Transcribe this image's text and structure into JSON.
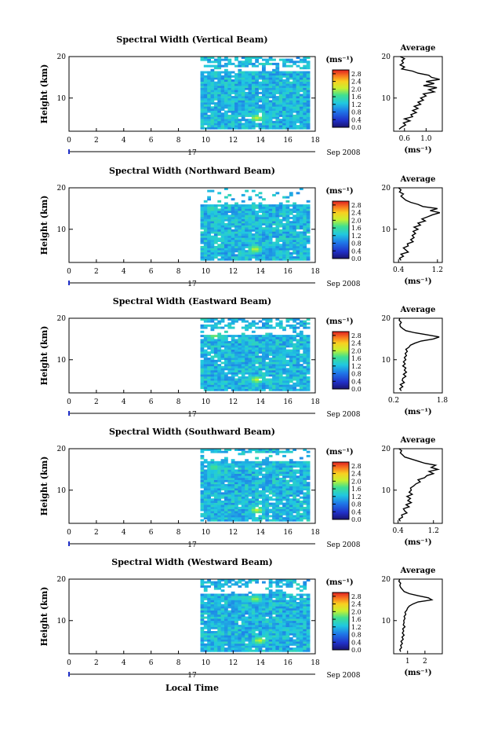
{
  "figure": {
    "xlabel": "Local Time",
    "date_label": "Sep 2008",
    "day_label": "17",
    "cbar_unit": "(ms⁻¹)",
    "avg_title": "Average",
    "avg_xlabel": "(ms⁻¹)"
  },
  "chart_data": [
    {
      "type": "heatmap",
      "title": "Spectral Width (Vertical Beam)",
      "ylabel": "Height (km)",
      "xlim": [
        0,
        18
      ],
      "ylim": [
        2,
        20
      ],
      "x_ticks": [
        "0",
        "2",
        "4",
        "6",
        "8",
        "10",
        "12",
        "14",
        "16",
        "18"
      ],
      "y_ticks": [
        "10",
        "20"
      ],
      "data_start_hour": 9.6,
      "data_end_hour": 17.6,
      "colorbar": {
        "ticks": [
          "0.0",
          "0.4",
          "0.8",
          "1.2",
          "1.6",
          "2.0",
          "2.4",
          "2.8"
        ],
        "range": [
          0,
          3.0
        ]
      },
      "features": [
        {
          "x": 13.6,
          "y": 5.0,
          "value": 2.8
        },
        {
          "x": 15.5,
          "y": 8.5,
          "value": 1.4
        },
        {
          "x": 10.5,
          "y": 15.5,
          "value": 1.6
        },
        {
          "x": 11.0,
          "y": 19.0,
          "value": 1.0
        }
      ],
      "gaps_km": [
        [
          16.2,
          17.0
        ]
      ],
      "avg_profile": {
        "xlim": [
          0.4,
          1.3
        ],
        "x_ticks": [
          "0.6",
          "1.0"
        ],
        "heights": [
          2.5,
          3,
          3.5,
          4,
          4.5,
          5,
          5.5,
          6,
          6.5,
          7,
          7.5,
          8,
          8.5,
          9,
          9.5,
          10,
          10.5,
          11,
          11.5,
          12,
          12.5,
          13,
          13.5,
          14,
          14.5,
          15,
          15.5,
          16,
          16.5,
          17,
          17.5,
          18,
          18.5,
          19,
          19.5,
          20
        ],
        "values": [
          0.5,
          0.55,
          0.62,
          0.58,
          0.7,
          0.6,
          0.75,
          0.72,
          0.82,
          0.75,
          0.85,
          0.78,
          0.9,
          0.85,
          0.95,
          0.9,
          1.0,
          0.95,
          1.15,
          1.05,
          1.2,
          0.95,
          1.15,
          1.0,
          1.25,
          1.1,
          1.05,
          0.85,
          0.75,
          0.55,
          0.6,
          0.52,
          0.58,
          0.55,
          0.6,
          0.52
        ]
      }
    },
    {
      "type": "heatmap",
      "title": "Spectral Width (Northward Beam)",
      "ylabel": "Height (km)",
      "xlim": [
        0,
        18
      ],
      "ylim": [
        2,
        20
      ],
      "x_ticks": [
        "0",
        "2",
        "4",
        "6",
        "8",
        "10",
        "12",
        "14",
        "16",
        "18"
      ],
      "y_ticks": [
        "10",
        "20"
      ],
      "data_start_hour": 9.6,
      "data_end_hour": 17.6,
      "colorbar": {
        "ticks": [
          "0.0",
          "0.4",
          "0.8",
          "1.2",
          "1.6",
          "2.0",
          "2.4",
          "2.8"
        ],
        "range": [
          0,
          3.0
        ]
      },
      "features": [
        {
          "x": 13.5,
          "y": 5.0,
          "value": 2.8
        },
        {
          "x": 10.3,
          "y": 14.8,
          "value": 2.0
        },
        {
          "x": 12.0,
          "y": 8.0,
          "value": 1.0
        }
      ],
      "gaps_km": [
        [
          16.0,
          19.5
        ]
      ],
      "avg_profile": {
        "xlim": [
          0.3,
          1.3
        ],
        "x_ticks": [
          "0.4",
          "1.2"
        ],
        "heights": [
          2.5,
          3,
          3.5,
          4,
          4.5,
          5,
          5.5,
          6,
          6.5,
          7,
          7.5,
          8,
          8.5,
          9,
          9.5,
          10,
          10.5,
          11,
          11.5,
          12,
          12.5,
          13,
          13.5,
          14,
          14.5,
          15,
          15.5,
          16,
          16.5,
          17,
          17.5,
          18,
          18.5,
          19,
          19.5,
          20
        ],
        "values": [
          0.45,
          0.42,
          0.5,
          0.45,
          0.6,
          0.55,
          0.5,
          0.6,
          0.58,
          0.7,
          0.65,
          0.72,
          0.68,
          0.75,
          0.7,
          0.8,
          0.72,
          0.85,
          0.8,
          0.95,
          0.88,
          1.0,
          1.1,
          1.25,
          1.05,
          1.2,
          0.9,
          0.8,
          0.65,
          0.55,
          0.5,
          0.45,
          0.5,
          0.42,
          0.45,
          0.4
        ]
      }
    },
    {
      "type": "heatmap",
      "title": "Spectral Width (Eastward Beam)",
      "ylabel": "Height (km)",
      "xlim": [
        0,
        18
      ],
      "ylim": [
        2,
        20
      ],
      "x_ticks": [
        "0",
        "2",
        "4",
        "6",
        "8",
        "10",
        "12",
        "14",
        "16",
        "18"
      ],
      "y_ticks": [
        "10",
        "20"
      ],
      "data_start_hour": 9.6,
      "data_end_hour": 17.6,
      "colorbar": {
        "ticks": [
          "0.0",
          "0.4",
          "0.8",
          "1.2",
          "1.6",
          "2.0",
          "2.4",
          "2.8"
        ],
        "range": [
          0,
          3.0
        ]
      },
      "features": [
        {
          "x": 13.6,
          "y": 5.0,
          "value": 2.8
        },
        {
          "x": 10.5,
          "y": 15.5,
          "value": 2.4
        },
        {
          "x": 16.0,
          "y": 12.0,
          "value": 1.6
        }
      ],
      "gaps_km": [
        [
          16.0,
          17.0
        ]
      ],
      "avg_profile": {
        "xlim": [
          0.2,
          1.8
        ],
        "x_ticks": [
          "0.2",
          "1.8"
        ],
        "heights": [
          2.5,
          3,
          3.5,
          4,
          4.5,
          5,
          5.5,
          6,
          6.5,
          7,
          7.5,
          8,
          8.5,
          9,
          9.5,
          10,
          10.5,
          11,
          11.5,
          12,
          12.5,
          13,
          13.5,
          14,
          14.5,
          15,
          15.5,
          16,
          16.5,
          17,
          17.5,
          18,
          18.5,
          19,
          19.5,
          20
        ],
        "values": [
          0.45,
          0.4,
          0.5,
          0.42,
          0.55,
          0.48,
          0.5,
          0.6,
          0.52,
          0.62,
          0.55,
          0.6,
          0.5,
          0.58,
          0.52,
          0.6,
          0.55,
          0.62,
          0.58,
          0.65,
          0.6,
          0.7,
          0.75,
          0.9,
          1.1,
          1.5,
          1.7,
          1.3,
          0.9,
          0.6,
          0.5,
          0.42,
          0.4,
          0.45,
          0.38,
          0.4
        ]
      }
    },
    {
      "type": "heatmap",
      "title": "Spectral Width (Southward Beam)",
      "ylabel": "Height (km)",
      "xlim": [
        0,
        18
      ],
      "ylim": [
        2,
        20
      ],
      "x_ticks": [
        "0",
        "2",
        "4",
        "6",
        "8",
        "10",
        "12",
        "14",
        "16",
        "18"
      ],
      "y_ticks": [
        "10",
        "20"
      ],
      "data_start_hour": 9.6,
      "data_end_hour": 17.6,
      "colorbar": {
        "ticks": [
          "0.0",
          "0.4",
          "0.8",
          "1.2",
          "1.6",
          "2.0",
          "2.4",
          "2.8"
        ],
        "range": [
          0,
          3.0
        ]
      },
      "features": [
        {
          "x": 13.6,
          "y": 5.0,
          "value": 2.8
        },
        {
          "x": 10.5,
          "y": 15.3,
          "value": 2.2
        },
        {
          "x": 14.5,
          "y": 15.0,
          "value": 1.8
        }
      ],
      "gaps_km": [
        [
          17.0,
          18.5
        ]
      ],
      "avg_profile": {
        "xlim": [
          0.3,
          1.4
        ],
        "x_ticks": [
          "0.4",
          "1.2"
        ],
        "heights": [
          2.5,
          3,
          3.5,
          4,
          4.5,
          5,
          5.5,
          6,
          6.5,
          7,
          7.5,
          8,
          8.5,
          9,
          9.5,
          10,
          10.5,
          11,
          11.5,
          12,
          12.5,
          13,
          13.5,
          14,
          14.5,
          15,
          15.5,
          16,
          16.5,
          17,
          17.5,
          18,
          18.5,
          19,
          19.5,
          20
        ],
        "values": [
          0.45,
          0.42,
          0.5,
          0.48,
          0.6,
          0.55,
          0.52,
          0.65,
          0.58,
          0.7,
          0.62,
          0.68,
          0.6,
          0.72,
          0.65,
          0.7,
          0.68,
          0.75,
          0.8,
          0.9,
          0.85,
          1.0,
          1.05,
          1.2,
          1.1,
          1.3,
          1.15,
          1.25,
          1.0,
          0.85,
          0.7,
          0.55,
          0.5,
          0.45,
          0.48,
          0.42
        ]
      }
    },
    {
      "type": "heatmap",
      "title": "Spectral Width (Westward Beam)",
      "ylabel": "Height (km)",
      "xlim": [
        0,
        18
      ],
      "ylim": [
        2,
        20
      ],
      "x_ticks": [
        "0",
        "2",
        "4",
        "6",
        "8",
        "10",
        "12",
        "14",
        "16",
        "18"
      ],
      "y_ticks": [
        "10",
        "20"
      ],
      "data_start_hour": 9.6,
      "data_end_hour": 17.6,
      "colorbar": {
        "ticks": [
          "0.0",
          "0.4",
          "0.8",
          "1.2",
          "1.6",
          "2.0",
          "2.4",
          "2.8"
        ],
        "range": [
          0,
          3.0
        ]
      },
      "features": [
        {
          "x": 13.8,
          "y": 5.0,
          "value": 2.8
        },
        {
          "x": 13.5,
          "y": 15.0,
          "value": 2.6
        },
        {
          "x": 10.5,
          "y": 13.0,
          "value": 1.2
        }
      ],
      "gaps_km": [
        [
          16.5,
          17.5
        ]
      ],
      "avg_profile": {
        "xlim": [
          0.2,
          3.0
        ],
        "x_ticks": [
          "1",
          "2"
        ],
        "heights": [
          2.5,
          3,
          3.5,
          4,
          4.5,
          5,
          5.5,
          6,
          6.5,
          7,
          7.5,
          8,
          8.5,
          9,
          9.5,
          10,
          10.5,
          11,
          11.5,
          12,
          12.5,
          13,
          13.5,
          14,
          14.5,
          15,
          15.5,
          16,
          16.5,
          17,
          17.5,
          18,
          18.5,
          19,
          19.5,
          20
        ],
        "values": [
          0.6,
          0.55,
          0.65,
          0.6,
          0.7,
          0.62,
          0.75,
          0.68,
          0.8,
          0.7,
          0.78,
          0.72,
          0.85,
          0.75,
          0.8,
          0.78,
          0.85,
          0.8,
          0.9,
          0.85,
          0.95,
          1.0,
          1.1,
          1.3,
          1.6,
          2.4,
          2.2,
          1.6,
          1.1,
          0.8,
          0.7,
          0.6,
          0.55,
          0.6,
          0.5,
          0.55
        ]
      }
    }
  ]
}
